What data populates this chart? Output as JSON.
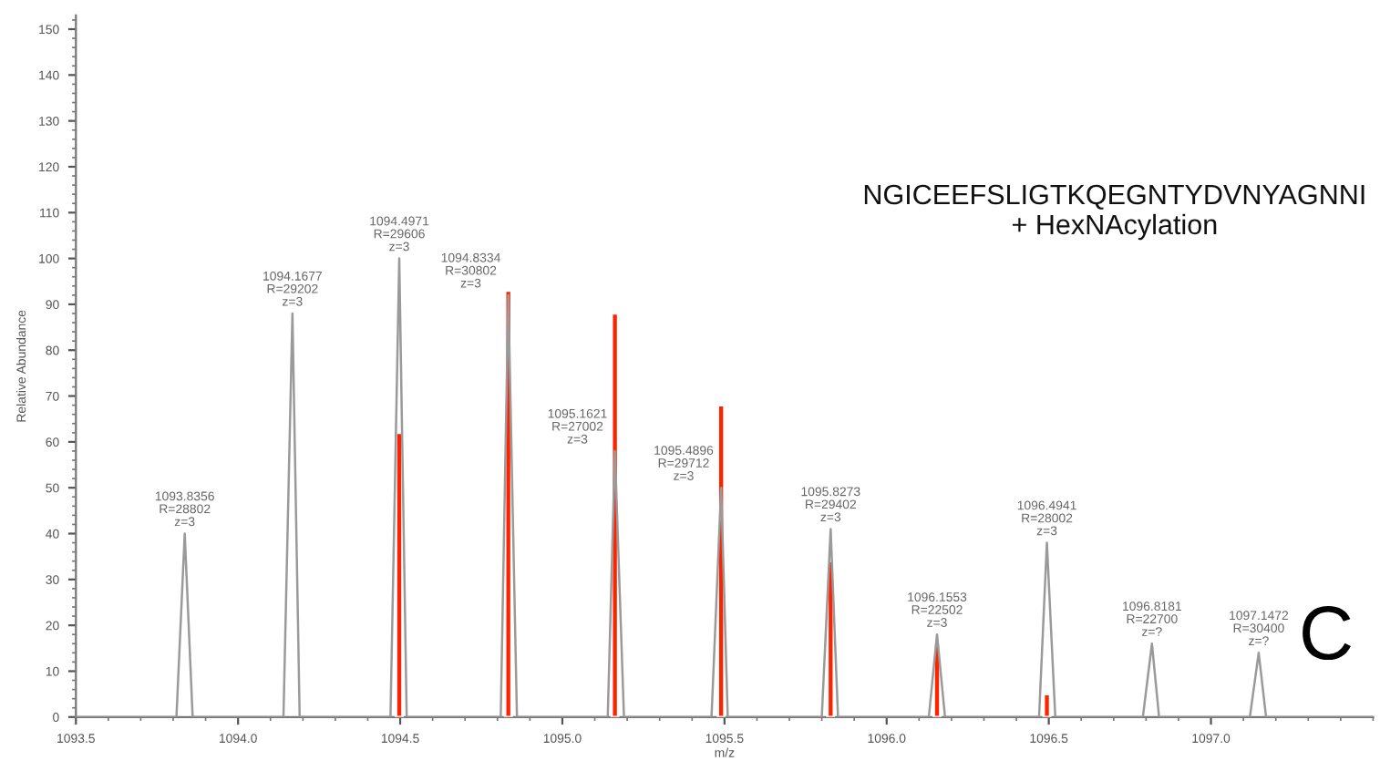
{
  "chart_data": {
    "type": "line",
    "xlabel": "m/z",
    "ylabel": "Relative Abundance",
    "xlim": [
      1093.5,
      1097.5
    ],
    "ylim": [
      0,
      153
    ],
    "xticks": [
      {
        "value": 1093.5,
        "label": "1093.5"
      },
      {
        "value": 1094.0,
        "label": "1094.0"
      },
      {
        "value": 1094.5,
        "label": "1094.5"
      },
      {
        "value": 1095.0,
        "label": "1095.0"
      },
      {
        "value": 1095.5,
        "label": "1095.5"
      },
      {
        "value": 1096.0,
        "label": "1096.0"
      },
      {
        "value": 1096.5,
        "label": "1096.5"
      },
      {
        "value": 1097.0,
        "label": "1097.0"
      }
    ],
    "yticks": [
      0,
      10,
      20,
      30,
      40,
      50,
      60,
      70,
      80,
      90,
      100,
      110,
      120,
      130,
      140,
      150
    ],
    "grid": false,
    "legend": false,
    "series": [
      {
        "color": "#9a9a9a",
        "x": [
          1093.5,
          1093.81,
          1093.8356,
          1093.86,
          1094.14,
          1094.1677,
          1094.19,
          1094.47,
          1094.4971,
          1094.52,
          1094.81,
          1094.8334,
          1094.86,
          1095.14,
          1095.1621,
          1095.19,
          1095.46,
          1095.4896,
          1095.51,
          1095.8,
          1095.8273,
          1095.85,
          1096.13,
          1096.1553,
          1096.18,
          1096.47,
          1096.4941,
          1096.52,
          1096.79,
          1096.8181,
          1096.84,
          1097.12,
          1097.1472,
          1097.17,
          1097.5
        ],
        "values": [
          0,
          0,
          40,
          0,
          0,
          88,
          0,
          0,
          100,
          0,
          0,
          92,
          0,
          0,
          58,
          0,
          0,
          50,
          0,
          0,
          41,
          0,
          0,
          18,
          0,
          0,
          38,
          0,
          0,
          16,
          0,
          0,
          14,
          0,
          0
        ]
      },
      {
        "type": "bar",
        "color": "#ff2200",
        "x": [
          1094.4971,
          1094.8334,
          1095.1621,
          1095.4896,
          1095.8273,
          1096.1553,
          1096.4941
        ],
        "values": [
          62,
          93,
          88,
          68,
          34,
          16,
          5
        ]
      }
    ],
    "annotations": [
      {
        "text": "1093.8356\nR=28802\nz=3",
        "x": 1093.8356,
        "y": 40
      },
      {
        "text": "1094.1677\nR=29202\nz=3",
        "x": 1094.1677,
        "y": 88
      },
      {
        "text": "1094.4971\nR=29606\nz=3",
        "x": 1094.4971,
        "y": 100
      },
      {
        "text": "1094.8334\nR=30802\nz=3",
        "x": 1094.8334,
        "y": 92
      },
      {
        "text": "1095.1621\nR=27002\nz=3",
        "x": 1095.1621,
        "y": 58
      },
      {
        "text": "1095.4896\nR=29712\nz=3",
        "x": 1095.4896,
        "y": 50
      },
      {
        "text": "1095.8273\nR=29402\nz=3",
        "x": 1095.8273,
        "y": 41
      },
      {
        "text": "1096.1553\nR=22502\nz=3",
        "x": 1096.1553,
        "y": 18
      },
      {
        "text": "1096.4941\nR=28002\nz=3",
        "x": 1096.4941,
        "y": 38
      },
      {
        "text": "1096.8181\nR=22700\nz=?",
        "x": 1096.8181,
        "y": 16
      },
      {
        "text": "1097.1472\nR=30400\nz=?",
        "x": 1097.1472,
        "y": 14
      },
      "NGICEEFSLIGTKQEGNTYDVNYAGNNI\n+ HexNAcylation",
      "C"
    ]
  }
}
